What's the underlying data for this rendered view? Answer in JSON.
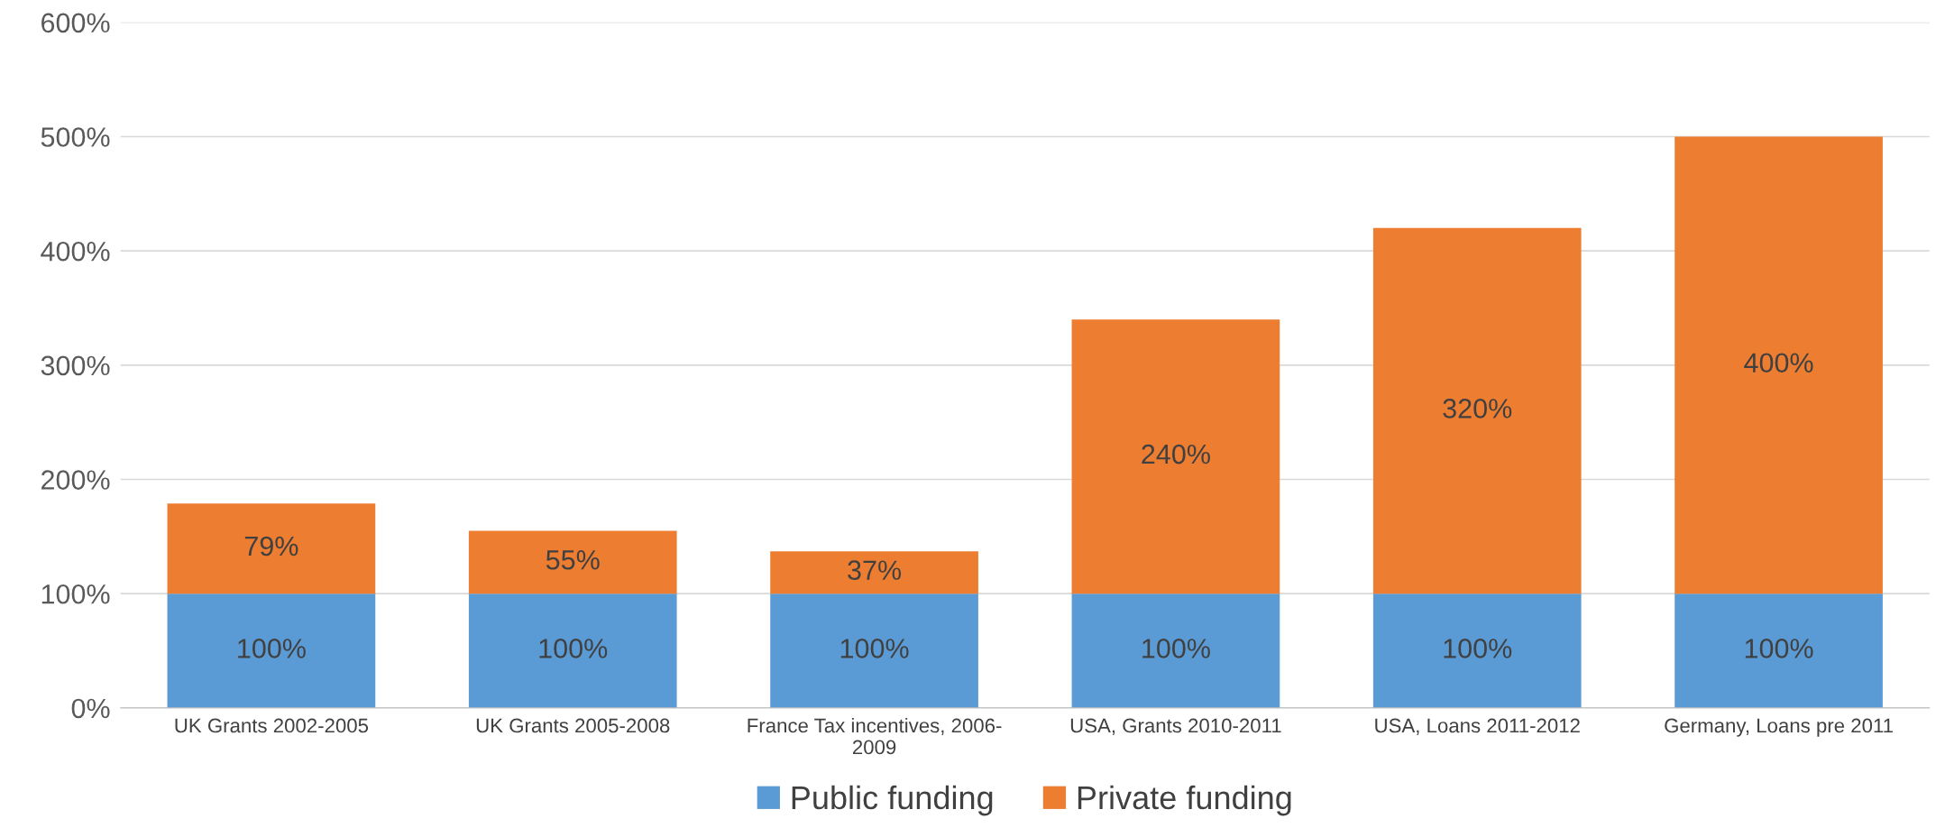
{
  "chart_data": {
    "type": "bar",
    "stacked": true,
    "categories": [
      "UK Grants 2002-2005",
      "UK Grants 2005-2008",
      "France Tax incentives, 2006-\n2009",
      "USA, Grants 2010-2011",
      "USA, Loans 2011-2012",
      "Germany, Loans pre 2011"
    ],
    "series": [
      {
        "name": "Public funding",
        "color": "#5b9bd5",
        "values": [
          100,
          100,
          100,
          100,
          100,
          100
        ],
        "value_labels": [
          "100%",
          "100%",
          "100%",
          "100%",
          "100%",
          "100%"
        ]
      },
      {
        "name": "Private funding",
        "color": "#ed7d31",
        "values": [
          79,
          55,
          37,
          240,
          320,
          400
        ],
        "value_labels": [
          "79%",
          "55%",
          "37%",
          "240%",
          "320%",
          "400%"
        ]
      }
    ],
    "ylim": [
      0,
      600
    ],
    "yticks": [
      {
        "value": 0,
        "label": "0%"
      },
      {
        "value": 100,
        "label": "100%"
      },
      {
        "value": 200,
        "label": "200%"
      },
      {
        "value": 300,
        "label": "300%"
      },
      {
        "value": 400,
        "label": "400%"
      },
      {
        "value": 500,
        "label": "500%"
      },
      {
        "value": 600,
        "label": "600%"
      }
    ],
    "grid": "y",
    "legend": "bottom"
  }
}
